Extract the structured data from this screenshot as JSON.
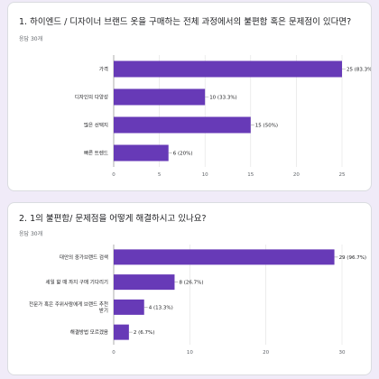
{
  "questions": [
    {
      "title": "1. 하이엔드 / 디자이너 브랜드 옷을 구매하는 전체 과정에서의 불편함 혹은 문제점이 있다면?",
      "response_count": "응답 30개"
    },
    {
      "title": "2. 1의 불편함/ 문제점을 어떻게 해결하시고 있나요?",
      "response_count": "응답 30개"
    }
  ],
  "colors": {
    "bar": "#673ab7",
    "background": "#f0ebf8",
    "grid": "#e0e0e0"
  },
  "chart_data": [
    {
      "type": "bar",
      "orientation": "horizontal",
      "categories": [
        "가격",
        "디자인의 다양성",
        "많은 선택지",
        "빠른 트렌드"
      ],
      "values": [
        25,
        10,
        15,
        6
      ],
      "value_labels": [
        "25 (83.3%)",
        "10 (33.3%)",
        "15 (50%)",
        "6 (20%)"
      ],
      "xlim": [
        0,
        25
      ],
      "xticks": [
        0,
        5,
        10,
        15,
        20,
        25
      ],
      "grid": true
    },
    {
      "type": "bar",
      "orientation": "horizontal",
      "categories": [
        "대안의 중가브랜드 검색",
        "세일 할 때 까지 구매 기다리기",
        "전문가 혹은 주위사람에게 브랜드 추천 받기",
        "해결방법 모르겠음"
      ],
      "category_lines": [
        [
          "대안의 중가브랜드 검색"
        ],
        [
          "세일 할 때 까지 구매 기다리기"
        ],
        [
          "전문가 혹은 주위사람에게 브랜드 추천",
          "받기"
        ],
        [
          "해결방법 모르겠음"
        ]
      ],
      "values": [
        29,
        8,
        4,
        2
      ],
      "value_labels": [
        "29 (96.7%)",
        "8 (26.7%)",
        "4 (13.3%)",
        "2 (6.7%)"
      ],
      "xlim": [
        0,
        30
      ],
      "xticks": [
        0,
        10,
        20,
        30
      ],
      "grid": true
    }
  ]
}
